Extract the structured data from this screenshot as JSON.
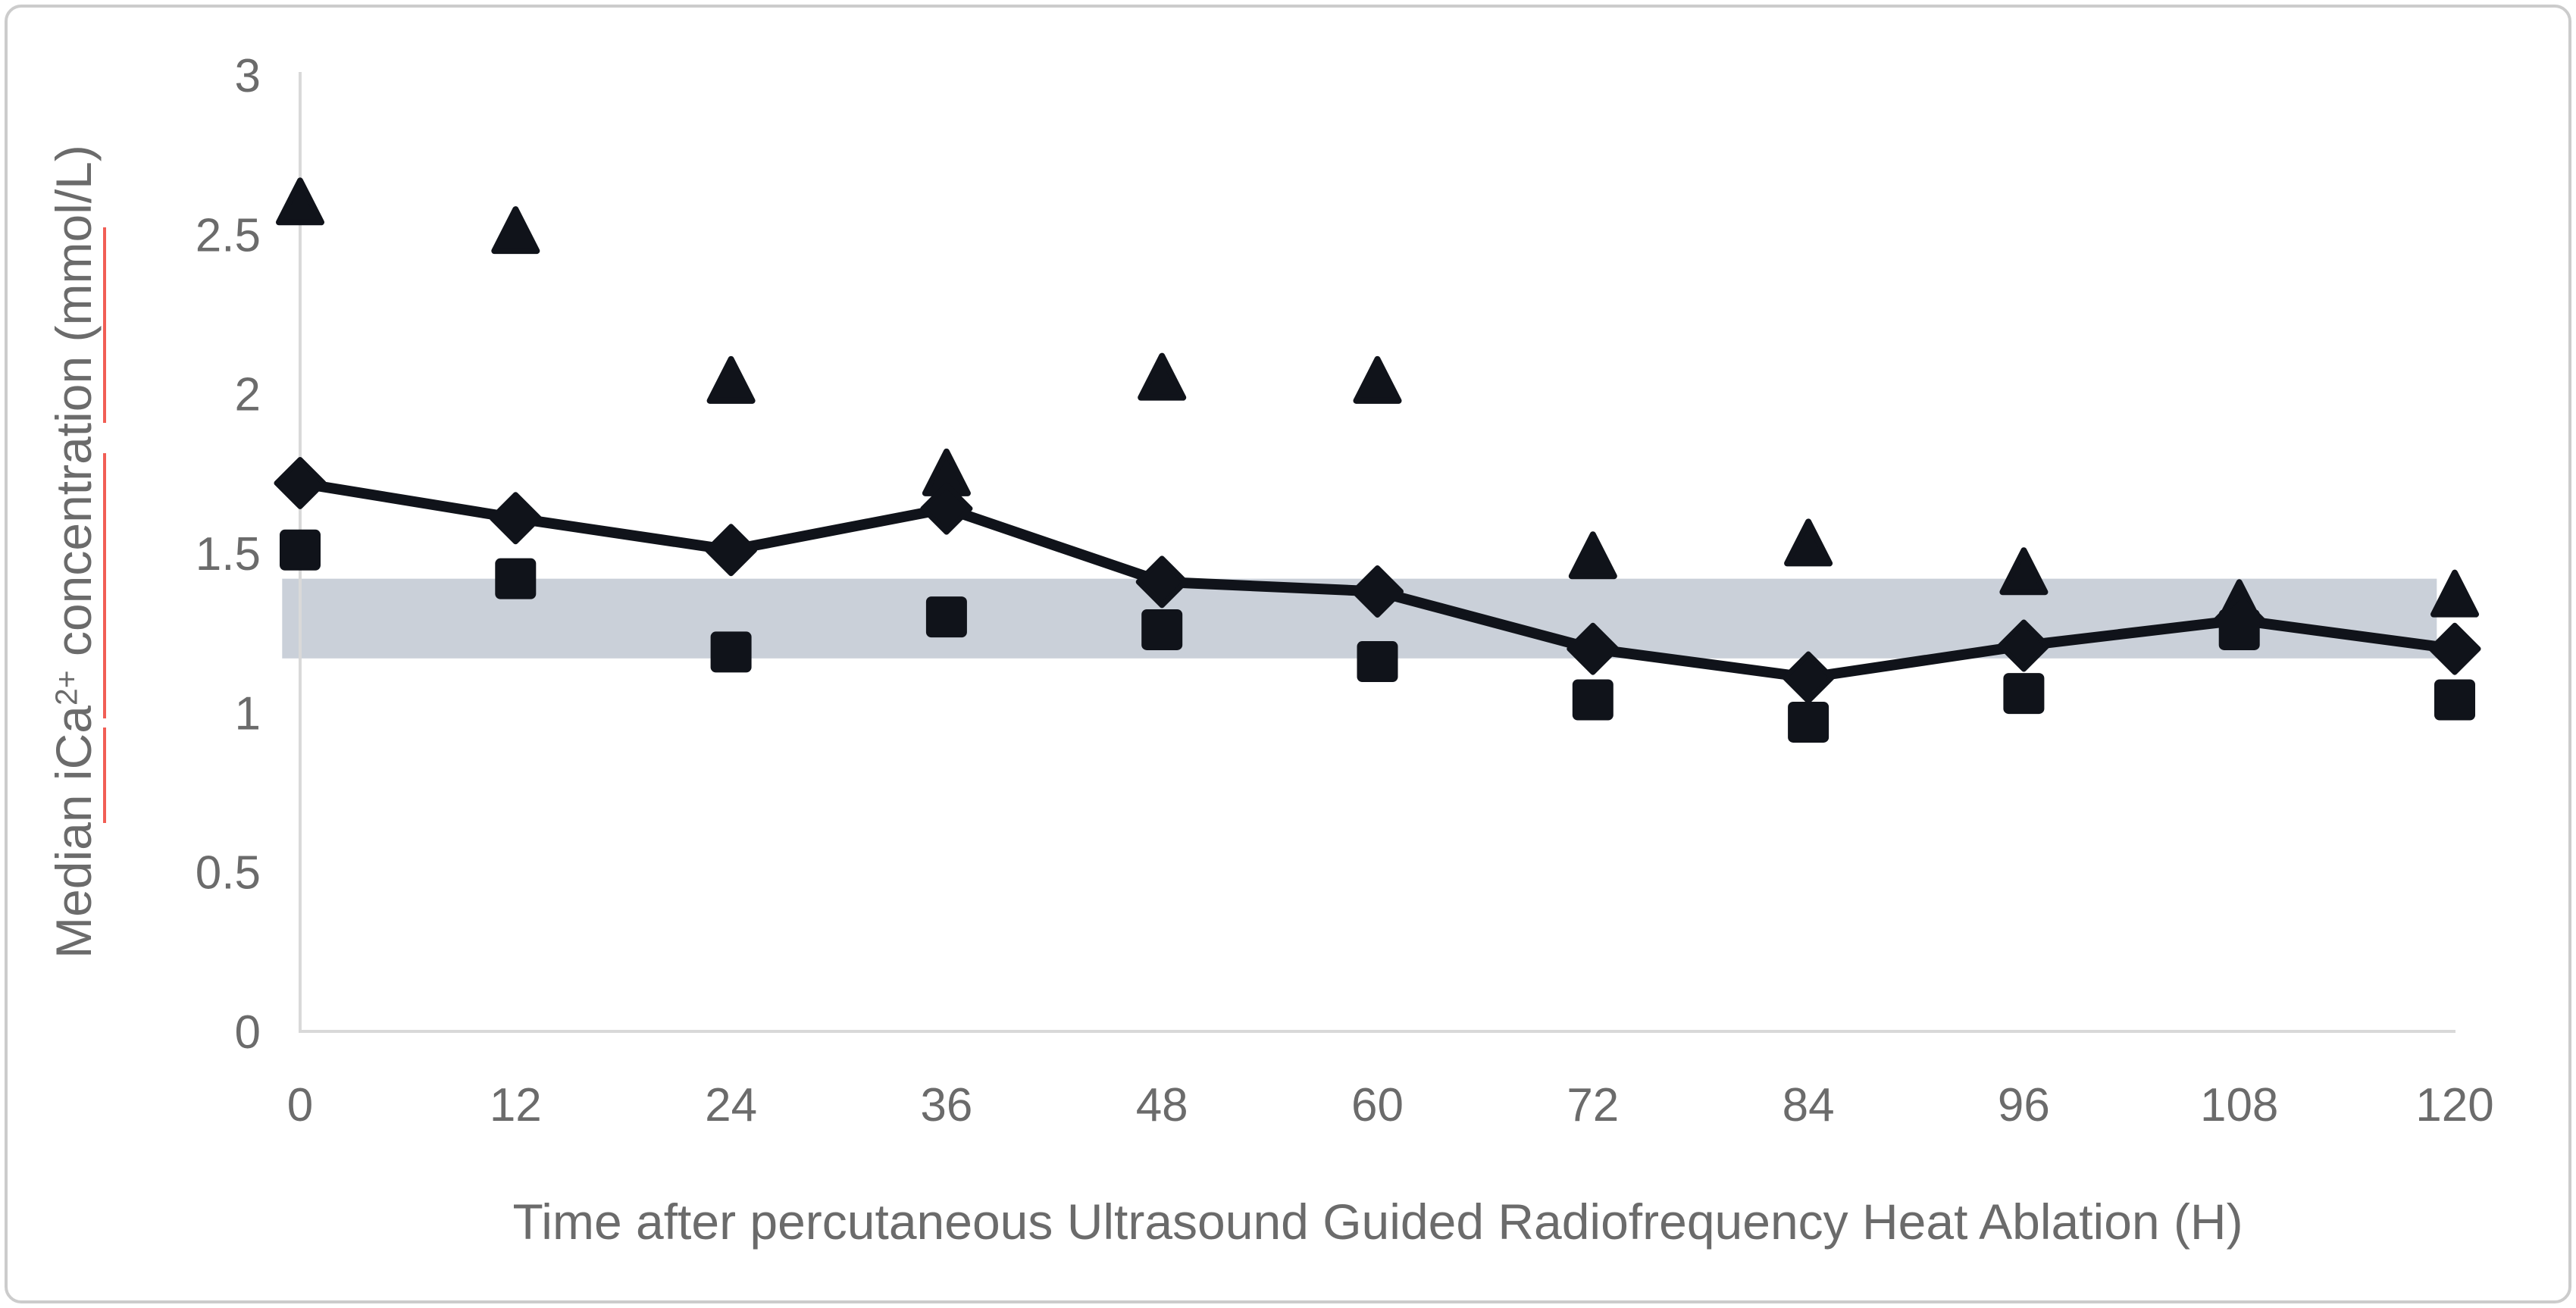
{
  "chart_data": {
    "type": "line",
    "title": "",
    "x": [
      0,
      12,
      24,
      36,
      48,
      60,
      72,
      84,
      96,
      108,
      120
    ],
    "x_tick_labels": [
      "0",
      "12",
      "24",
      "36",
      "48",
      "60",
      "72",
      "84",
      "96",
      "108",
      "120"
    ],
    "yticks": [
      0,
      0.5,
      1,
      1.5,
      2,
      2.5,
      3
    ],
    "y_tick_labels": [
      "0",
      "0.5",
      "1",
      "1.5",
      "2",
      "2.5",
      "3"
    ],
    "ylim": [
      0,
      3
    ],
    "xlim": [
      0,
      120
    ],
    "xlabel": "Time after percutaneous Ultrasound Guided Radiofrequency Heat Ablation (H)",
    "ylabel": "Median iCa2+ concentration (mmol/L)",
    "ylabel_parts": {
      "pre": "Median iCa",
      "sup": "2+",
      "post": " concentration (mmol/L)"
    },
    "legend": "none",
    "grid": false,
    "series": [
      {
        "name": "triangle-points",
        "marker": "triangle",
        "has_line": false,
        "values": [
          2.6,
          2.51,
          2.04,
          1.75,
          2.05,
          2.04,
          1.49,
          1.53,
          1.44,
          1.34,
          1.37
        ]
      },
      {
        "name": "diamond-line",
        "marker": "diamond",
        "has_line": true,
        "values": [
          1.72,
          1.61,
          1.51,
          1.64,
          1.41,
          1.38,
          1.2,
          1.11,
          1.21,
          1.29,
          1.2
        ]
      },
      {
        "name": "square-points",
        "marker": "square",
        "has_line": false,
        "values": [
          1.51,
          1.42,
          1.19,
          1.3,
          1.26,
          1.16,
          1.04,
          0.97,
          1.06,
          1.26,
          1.04
        ]
      }
    ],
    "reference_band": {
      "low": 1.17,
      "high": 1.42,
      "x_start": -1,
      "x_end": 119,
      "color": "#cad0d9"
    },
    "colors": {
      "marker": "#10131a",
      "line": "#10131a",
      "axis": "#d9d9d9",
      "labels": "#6b6b6b",
      "frame_border": "#cccccc",
      "background": "#ffffff"
    }
  }
}
